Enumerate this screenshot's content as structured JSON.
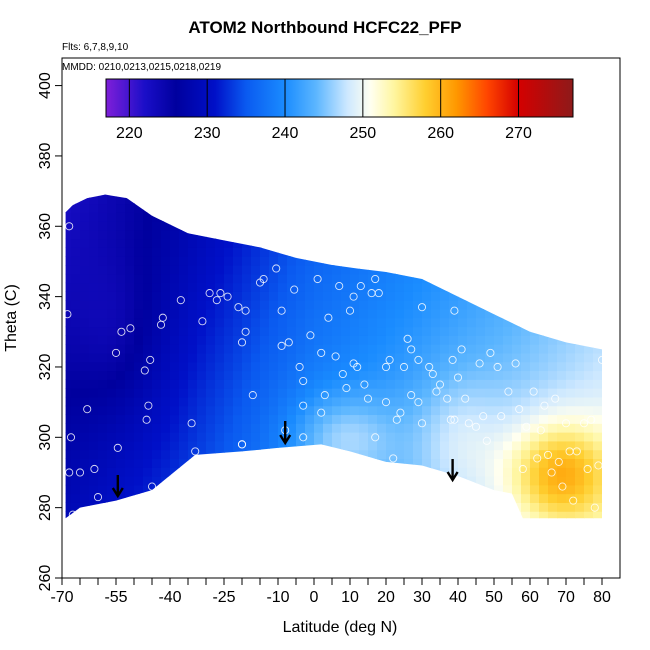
{
  "chart_data": {
    "type": "heatmap",
    "title": "ATOM2 Northbound HCFC22_PFP",
    "flights_label": "Flts: 6,7,8,9,10",
    "mmdd_label": "MMDD: 0210,0213,0215,0218,0219",
    "xlabel": "Latitude (deg N)",
    "ylabel": "Theta (C)",
    "xlim": [
      -70,
      80
    ],
    "ylim": [
      260,
      405
    ],
    "x_ticks": [
      -70,
      -55,
      -40,
      -25,
      -10,
      0,
      10,
      20,
      30,
      40,
      50,
      60,
      70,
      80
    ],
    "y_ticks": [
      260,
      280,
      300,
      320,
      340,
      360,
      380,
      400
    ],
    "colorbar": {
      "range": [
        217,
        277
      ],
      "ticks": [
        220,
        230,
        240,
        250,
        260,
        270
      ],
      "stops": [
        {
          "value": 217,
          "color": "#7f1fd9"
        },
        {
          "value": 222,
          "color": "#1a0ec8"
        },
        {
          "value": 226,
          "color": "#00009e"
        },
        {
          "value": 231,
          "color": "#0010c8"
        },
        {
          "value": 235,
          "color": "#0a5af0"
        },
        {
          "value": 240,
          "color": "#1a8cff"
        },
        {
          "value": 244,
          "color": "#5cb6ff"
        },
        {
          "value": 248,
          "color": "#cde8ff"
        },
        {
          "value": 251,
          "color": "#fffff0"
        },
        {
          "value": 254,
          "color": "#fff6a0"
        },
        {
          "value": 258,
          "color": "#ffcf30"
        },
        {
          "value": 262,
          "color": "#ff9800"
        },
        {
          "value": 266,
          "color": "#ff4500"
        },
        {
          "value": 270,
          "color": "#d40000"
        },
        {
          "value": 277,
          "color": "#8e1a1a"
        }
      ]
    },
    "field": {
      "top_boundary": [
        [
          -69,
          364
        ],
        [
          -67,
          366
        ],
        [
          -63,
          368
        ],
        [
          -58,
          369
        ],
        [
          -52,
          368
        ],
        [
          -45,
          363
        ],
        [
          -35,
          358
        ],
        [
          -25,
          356
        ],
        [
          -15,
          354
        ],
        [
          -5,
          351
        ],
        [
          5,
          349
        ],
        [
          12,
          348
        ],
        [
          20,
          347
        ],
        [
          30,
          345
        ],
        [
          40,
          340
        ],
        [
          50,
          335
        ],
        [
          60,
          330
        ],
        [
          70,
          327
        ],
        [
          80,
          325
        ]
      ],
      "bottom_boundary": [
        [
          -69,
          277
        ],
        [
          -65,
          280
        ],
        [
          -55,
          282
        ],
        [
          -45,
          285
        ],
        [
          -33,
          295
        ],
        [
          -20,
          296
        ],
        [
          -10,
          297
        ],
        [
          2,
          298
        ],
        [
          10,
          296
        ],
        [
          20,
          293
        ],
        [
          30,
          292
        ],
        [
          40,
          289
        ],
        [
          50,
          285
        ],
        [
          55,
          284
        ],
        [
          58,
          277
        ],
        [
          80,
          277
        ]
      ]
    },
    "arrows": [
      -54.5,
      -8,
      38.5
    ],
    "samples": [
      [
        -68.5,
        335
      ],
      [
        -68,
        360
      ],
      [
        -67.5,
        300
      ],
      [
        -68,
        290
      ],
      [
        -67,
        278
      ],
      [
        -65,
        290
      ],
      [
        -63,
        308
      ],
      [
        -61,
        291
      ],
      [
        -60,
        283
      ],
      [
        -55,
        324
      ],
      [
        -54.5,
        297
      ],
      [
        -53.5,
        330
      ],
      [
        -51,
        331
      ],
      [
        -47,
        319
      ],
      [
        -46.5,
        305
      ],
      [
        -46,
        309
      ],
      [
        -45.5,
        322
      ],
      [
        -45,
        286
      ],
      [
        -42.5,
        332
      ],
      [
        -42,
        334
      ],
      [
        -37,
        339
      ],
      [
        -34,
        304
      ],
      [
        -33,
        296
      ],
      [
        -31,
        333
      ],
      [
        -29,
        341
      ],
      [
        -27,
        339
      ],
      [
        -26,
        341
      ],
      [
        -24,
        340
      ],
      [
        -21,
        337
      ],
      [
        -20,
        327
      ],
      [
        -20,
        298
      ],
      [
        -20,
        298
      ],
      [
        -19,
        330
      ],
      [
        -19,
        336
      ],
      [
        -17,
        312
      ],
      [
        -15,
        344
      ],
      [
        -14,
        345
      ],
      [
        -10.5,
        348
      ],
      [
        -9,
        326
      ],
      [
        -9,
        336
      ],
      [
        -8,
        302
      ],
      [
        -7,
        327
      ],
      [
        -5.5,
        342
      ],
      [
        -4,
        320
      ],
      [
        -3,
        316
      ],
      [
        -3,
        309
      ],
      [
        -3,
        300
      ],
      [
        -1,
        329
      ],
      [
        1,
        345
      ],
      [
        2,
        324
      ],
      [
        2,
        307
      ],
      [
        3,
        312
      ],
      [
        4,
        334
      ],
      [
        6,
        323
      ],
      [
        7,
        343
      ],
      [
        8,
        318
      ],
      [
        9,
        314
      ],
      [
        10,
        293
      ],
      [
        10,
        336
      ],
      [
        11,
        340
      ],
      [
        11,
        321
      ],
      [
        12,
        320
      ],
      [
        13,
        343
      ],
      [
        14,
        315
      ],
      [
        15,
        311
      ],
      [
        16,
        341
      ],
      [
        17,
        345
      ],
      [
        17,
        300
      ],
      [
        18,
        341
      ],
      [
        20,
        320
      ],
      [
        20,
        310
      ],
      [
        21,
        322
      ],
      [
        22,
        294
      ],
      [
        23,
        305
      ],
      [
        24,
        307
      ],
      [
        25,
        320
      ],
      [
        26,
        328
      ],
      [
        27,
        325
      ],
      [
        27,
        312
      ],
      [
        29,
        322
      ],
      [
        29,
        310
      ],
      [
        30,
        337
      ],
      [
        30,
        304
      ],
      [
        32,
        320
      ],
      [
        33,
        318
      ],
      [
        34,
        313
      ],
      [
        35,
        315
      ],
      [
        37,
        311
      ],
      [
        38,
        305
      ],
      [
        38.5,
        322
      ],
      [
        39,
        336
      ],
      [
        39,
        305
      ],
      [
        40,
        317
      ],
      [
        41,
        325
      ],
      [
        42,
        311
      ],
      [
        43,
        304
      ],
      [
        45,
        303
      ],
      [
        46,
        321
      ],
      [
        47,
        306
      ],
      [
        48,
        299
      ],
      [
        49,
        324
      ],
      [
        51,
        320
      ],
      [
        52,
        306
      ],
      [
        54,
        313
      ],
      [
        56,
        321
      ],
      [
        57,
        308
      ],
      [
        58,
        291
      ],
      [
        59,
        303
      ],
      [
        61,
        313
      ],
      [
        62,
        294
      ],
      [
        63,
        302
      ],
      [
        64,
        309
      ],
      [
        65,
        295
      ],
      [
        66,
        290
      ],
      [
        67,
        311
      ],
      [
        68,
        293
      ],
      [
        69,
        286
      ],
      [
        70,
        304
      ],
      [
        71,
        296
      ],
      [
        72,
        282
      ],
      [
        73,
        296
      ],
      [
        75,
        304
      ],
      [
        76,
        291
      ],
      [
        77,
        305
      ],
      [
        78,
        280
      ],
      [
        79,
        292
      ],
      [
        80,
        322
      ]
    ]
  }
}
